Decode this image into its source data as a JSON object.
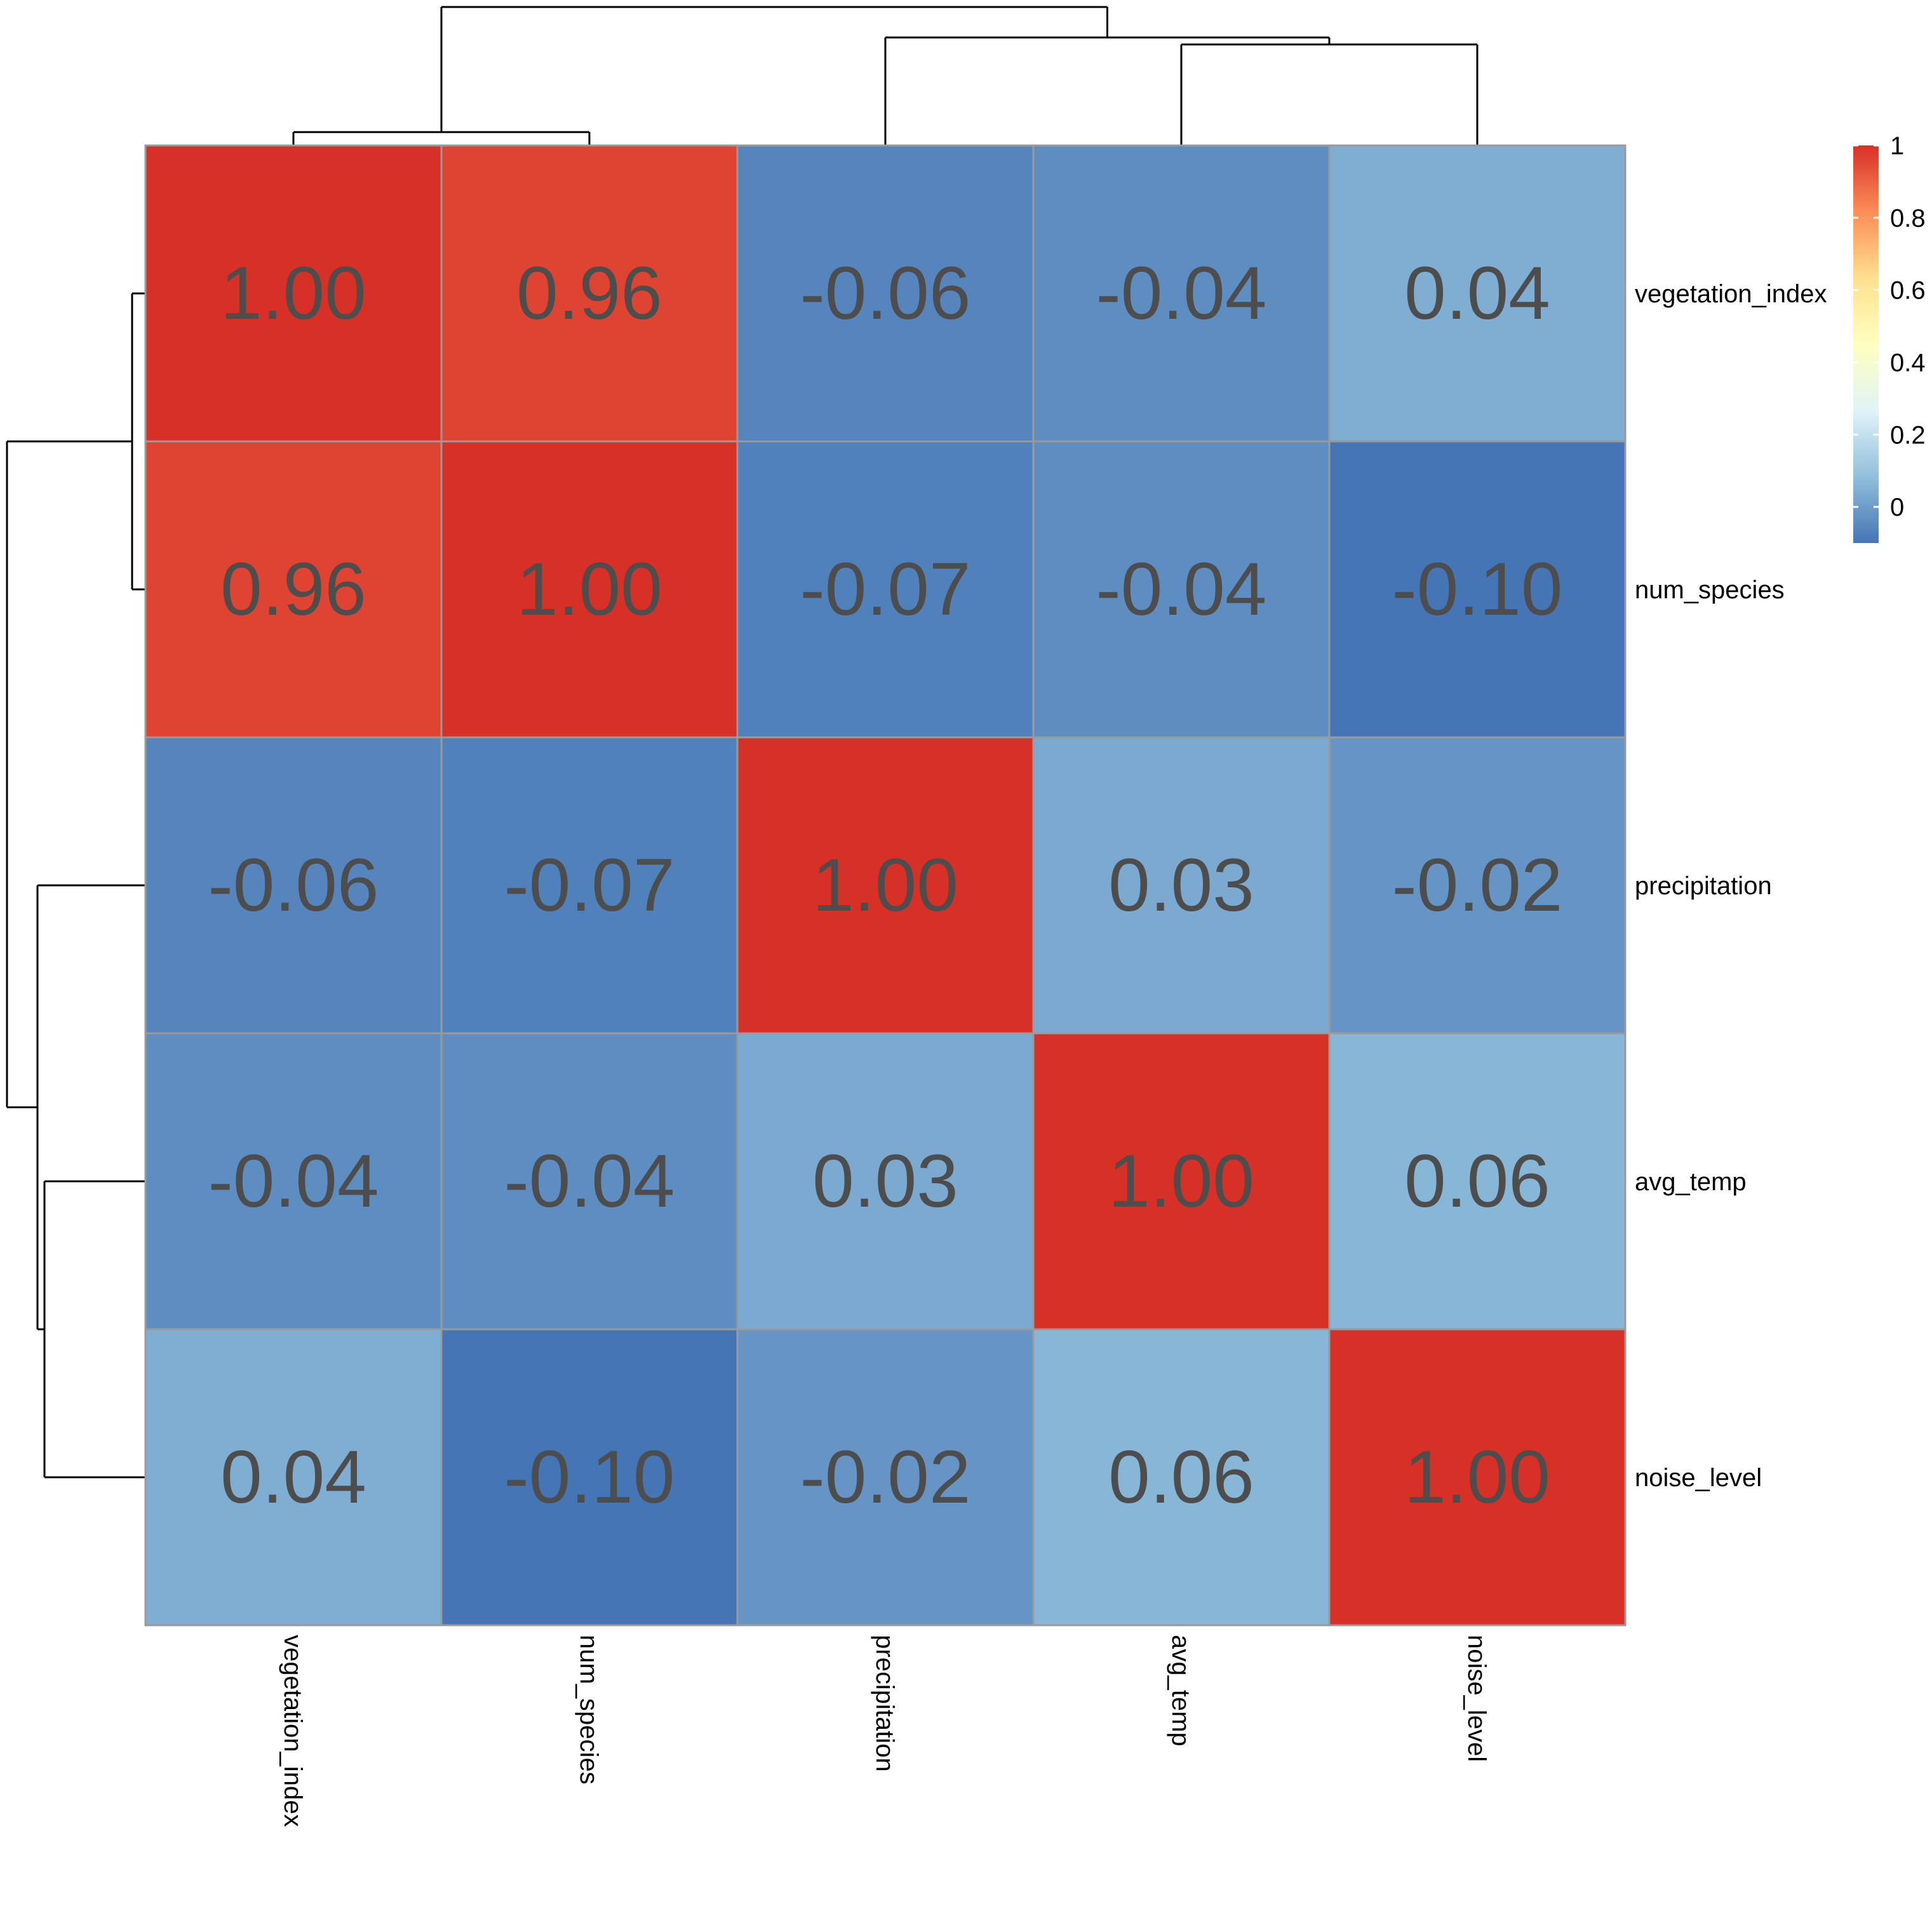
{
  "chart_data": {
    "type": "heatmap",
    "title": "",
    "row_labels": [
      "vegetation_index",
      "num_species",
      "precipitation",
      "avg_temp",
      "noise_level"
    ],
    "col_labels": [
      "vegetation_index",
      "num_species",
      "precipitation",
      "avg_temp",
      "noise_level"
    ],
    "values": [
      [
        1.0,
        0.96,
        -0.06,
        -0.04,
        0.04
      ],
      [
        0.96,
        1.0,
        -0.07,
        -0.04,
        -0.1
      ],
      [
        -0.06,
        -0.07,
        1.0,
        0.03,
        -0.02
      ],
      [
        -0.04,
        -0.04,
        0.03,
        1.0,
        0.06
      ],
      [
        0.04,
        -0.1,
        -0.02,
        0.06,
        1.0
      ]
    ],
    "cell_labels": [
      [
        "1.00",
        "0.96",
        "-0.06",
        "-0.04",
        "0.04"
      ],
      [
        "0.96",
        "1.00",
        "-0.07",
        "-0.04",
        "-0.10"
      ],
      [
        "-0.06",
        "-0.07",
        "1.00",
        "0.03",
        "-0.02"
      ],
      [
        "-0.04",
        "-0.04",
        "0.03",
        "1.00",
        "0.06"
      ],
      [
        "0.04",
        "-0.10",
        "-0.02",
        "0.06",
        "1.00"
      ]
    ],
    "legend": {
      "placement": "top-right",
      "range": [
        -0.1,
        1.0
      ],
      "ticks": [
        0,
        0.2,
        0.4,
        0.6,
        0.8,
        1
      ],
      "tick_labels": [
        "0",
        "0.2",
        "0.4",
        "0.6",
        "0.8",
        "1"
      ],
      "colors": [
        "#4575b4",
        "#91bfdb",
        "#e0f3f8",
        "#ffffbf",
        "#fee090",
        "#fc8d59",
        "#d73027"
      ]
    },
    "dendrogram": {
      "column_tree": "((vegetation_index,num_species),(precipitation,(avg_temp,noise_level)))",
      "row_tree": "((vegetation_index,num_species),(precipitation,(avg_temp,noise_level)))"
    },
    "colors": {
      "cell_border": "#9a9a9a",
      "cell_text": "#4d4d4d",
      "dendrogram_line": "#000000"
    }
  }
}
